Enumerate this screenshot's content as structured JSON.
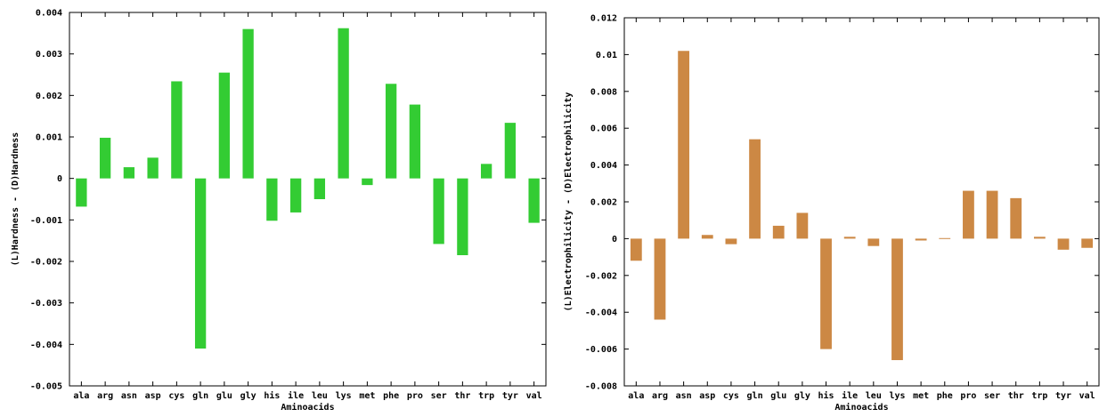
{
  "chart_data": [
    {
      "type": "bar",
      "xlabel": "Aminoacids",
      "ylabel": "(L)Hardness - (D)Hardness",
      "ylim": [
        -0.005,
        0.004
      ],
      "yticks": [
        -0.005,
        -0.004,
        -0.003,
        -0.002,
        -0.001,
        0,
        0.001,
        0.002,
        0.003,
        0.004
      ],
      "ytick_labels": [
        "-0.005",
        "-0.004",
        "-0.003",
        "-0.002",
        "-0.001",
        "0",
        "0.001",
        "0.002",
        "0.003",
        "0.004"
      ],
      "categories": [
        "ala",
        "arg",
        "asn",
        "asp",
        "cys",
        "gln",
        "glu",
        "gly",
        "his",
        "ile",
        "leu",
        "lys",
        "met",
        "phe",
        "pro",
        "ser",
        "thr",
        "trp",
        "tyr",
        "val"
      ],
      "values": [
        -0.00068,
        0.00098,
        0.00027,
        0.0005,
        0.00234,
        -0.0041,
        0.00255,
        0.0036,
        -0.00102,
        -0.00082,
        -0.0005,
        0.00362,
        -0.00016,
        0.00228,
        0.00178,
        -0.00158,
        -0.00185,
        0.00035,
        0.00134,
        -0.00107
      ],
      "color": "#33cc33",
      "grid": false,
      "legend": "none"
    },
    {
      "type": "bar",
      "xlabel": "Aminoacids",
      "ylabel": "(L)Electrophilicity - (D)Electrophilicity",
      "ylim": [
        -0.008,
        0.012
      ],
      "yticks": [
        -0.008,
        -0.006,
        -0.004,
        -0.002,
        0,
        0.002,
        0.004,
        0.006,
        0.008,
        0.01,
        0.012
      ],
      "ytick_labels": [
        "-0.008",
        "-0.006",
        "-0.004",
        "-0.002",
        "0",
        "0.002",
        "0.004",
        "0.006",
        "0.008",
        "0.01",
        "0.012"
      ],
      "categories": [
        "ala",
        "arg",
        "asn",
        "asp",
        "cys",
        "gln",
        "glu",
        "gly",
        "his",
        "ile",
        "leu",
        "lys",
        "met",
        "phe",
        "pro",
        "ser",
        "thr",
        "trp",
        "tyr",
        "val"
      ],
      "values": [
        -0.0012,
        -0.0044,
        0.0102,
        0.0002,
        -0.0003,
        0.0054,
        0.0007,
        0.0014,
        -0.006,
        0.0001,
        -0.0004,
        -0.0066,
        -0.0001,
        3e-05,
        0.0026,
        0.0026,
        0.0022,
        0.0001,
        -0.0006,
        -0.0005
      ],
      "color": "#cc8844",
      "grid": false,
      "legend": "none"
    }
  ]
}
